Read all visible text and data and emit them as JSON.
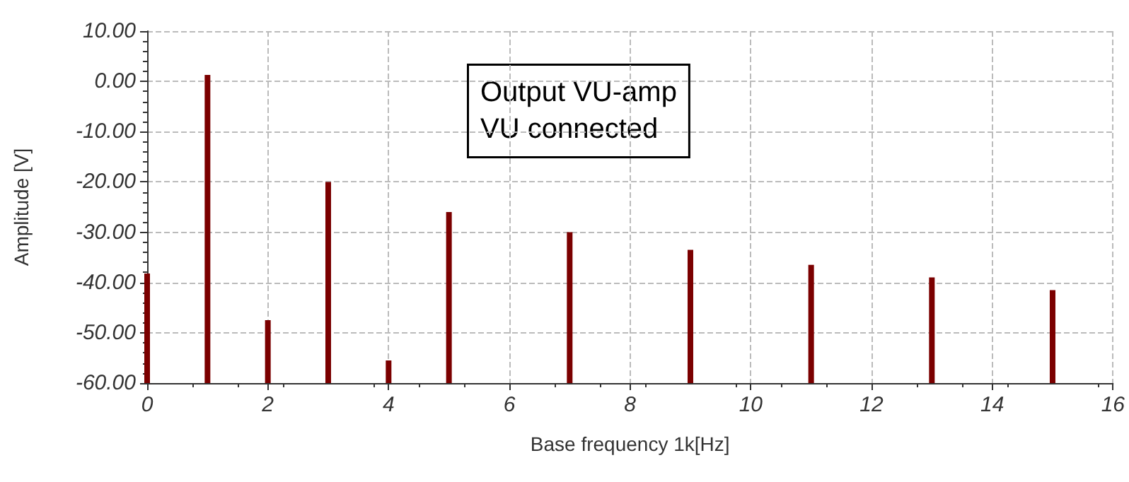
{
  "chart_data": {
    "type": "bar",
    "xlabel": "Base frequency 1k[Hz]",
    "ylabel": "Amplitude [V]",
    "annotations": [
      "Output VU-amp\nVU connected"
    ],
    "x": [
      0,
      1,
      2,
      3,
      4,
      5,
      7,
      9,
      11,
      13,
      15
    ],
    "series": [
      {
        "color": "#7b0000",
        "base": [
          -60,
          -60,
          -60,
          -60,
          -60,
          -60,
          -60,
          -60,
          -60,
          -60,
          -60
        ],
        "values": [
          21.8,
          61.3,
          12.5,
          40,
          4.5,
          34,
          30,
          26.5,
          23.5,
          21,
          18.5
        ]
      }
    ],
    "xlim": [
      0,
      16
    ],
    "xticks": [
      0,
      2,
      4,
      6,
      8,
      10,
      12,
      14,
      16
    ],
    "ylim": [
      -60,
      10
    ],
    "yticks": [
      {
        "value": -60,
        "label": "-60.00"
      },
      {
        "value": -50,
        "label": "-50.00"
      },
      {
        "value": -40,
        "label": "-40.00"
      },
      {
        "value": -30,
        "label": "-30.00"
      },
      {
        "value": -20,
        "label": "-20.00"
      },
      {
        "value": -10,
        "label": "-10.00"
      },
      {
        "value": 0,
        "label": "0.00"
      },
      {
        "value": 10,
        "label": "10.00"
      }
    ],
    "grid": true
  }
}
